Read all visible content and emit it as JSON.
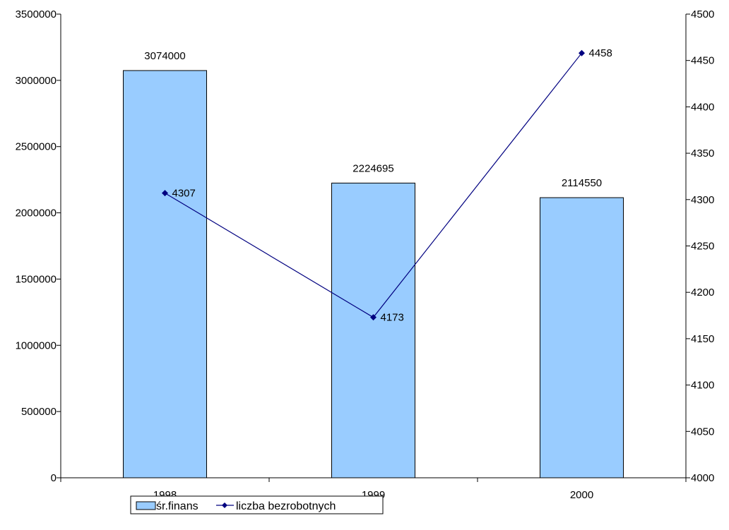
{
  "chart_data": {
    "type": "bar-line-combo",
    "categories": [
      "1998",
      "1999",
      "2000"
    ],
    "series": [
      {
        "name": "śr.finans",
        "type": "bar",
        "axis": "left",
        "values": [
          3074000,
          2224695,
          2114550
        ],
        "labels": [
          "3074000",
          "2224695",
          "2114550"
        ],
        "color": "#99ccff"
      },
      {
        "name": "liczba bezrobotnych",
        "type": "line",
        "axis": "right",
        "values": [
          4307,
          4173,
          4458
        ],
        "labels": [
          "4307",
          "4173",
          "4458"
        ],
        "color": "#000080"
      }
    ],
    "y_left": {
      "min": 0,
      "max": 3500000,
      "ticks": [
        0,
        500000,
        1000000,
        1500000,
        2000000,
        2500000,
        3000000,
        3500000
      ],
      "tick_labels": [
        "0",
        "500000",
        "1000000",
        "1500000",
        "2000000",
        "2500000",
        "3000000",
        "3500000"
      ]
    },
    "y_right": {
      "min": 4000,
      "max": 4500,
      "ticks": [
        4000,
        4050,
        4100,
        4150,
        4200,
        4250,
        4300,
        4350,
        4400,
        4450,
        4500
      ],
      "tick_labels": [
        "4000",
        "4050",
        "4100",
        "4150",
        "4200",
        "4250",
        "4300",
        "4350",
        "4400",
        "4450",
        "4500"
      ]
    },
    "grid": false,
    "legend": {
      "position": "bottom-left",
      "entries": [
        "śr.finans",
        "liczba bezrobotnych"
      ]
    }
  }
}
